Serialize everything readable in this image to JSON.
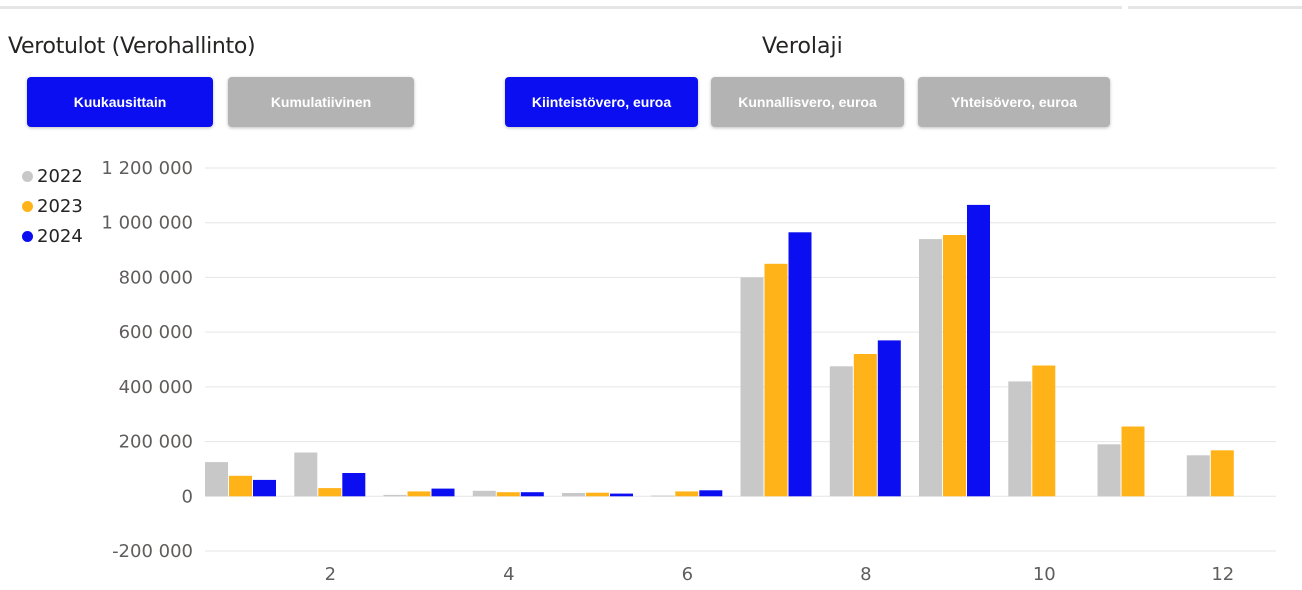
{
  "header": {
    "title": "Verotulot (Verohallinto)",
    "slicer_title": "Verolaji"
  },
  "mode_buttons": [
    {
      "label": "Kuukausittain",
      "selected": true
    },
    {
      "label": "Kumulatiivinen",
      "selected": false
    }
  ],
  "tax_buttons": [
    {
      "label": "Kiinteistövero, euroa",
      "selected": true
    },
    {
      "label": "Kunnallisvero, euroa",
      "selected": false
    },
    {
      "label": "Yhteisövero, euroa",
      "selected": false
    }
  ],
  "colors": {
    "accent": "#0a0ef0",
    "inactive": "#b3b3b3",
    "s2022": "#c8c8c8",
    "s2023": "#ffb319",
    "s2024": "#0a0ef0",
    "grid": "#e6e6e6"
  },
  "chart_data": {
    "type": "bar",
    "categories": [
      1,
      2,
      3,
      4,
      5,
      6,
      7,
      8,
      9,
      10,
      11,
      12
    ],
    "xtick_labels": [
      "2",
      "4",
      "6",
      "8",
      "10",
      "12"
    ],
    "ytick_labels": [
      "1 200 000",
      "1 000 000",
      "800 000",
      "600 000",
      "400 000",
      "200 000",
      "0",
      "-200 000"
    ],
    "ylim": [
      -200000,
      1200000
    ],
    "grid": true,
    "legend": "left",
    "series": [
      {
        "name": "2022",
        "color": "#c8c8c8",
        "values": [
          125000,
          160000,
          5000,
          20000,
          12000,
          3000,
          800000,
          475000,
          940000,
          420000,
          190000,
          150000
        ]
      },
      {
        "name": "2023",
        "color": "#ffb319",
        "values": [
          75000,
          30000,
          18000,
          15000,
          13000,
          18000,
          850000,
          520000,
          955000,
          478000,
          255000,
          168000
        ]
      },
      {
        "name": "2024",
        "color": "#0a0ef0",
        "values": [
          60000,
          85000,
          28000,
          15000,
          10000,
          22000,
          965000,
          570000,
          1065000,
          null,
          null,
          null
        ]
      }
    ]
  }
}
